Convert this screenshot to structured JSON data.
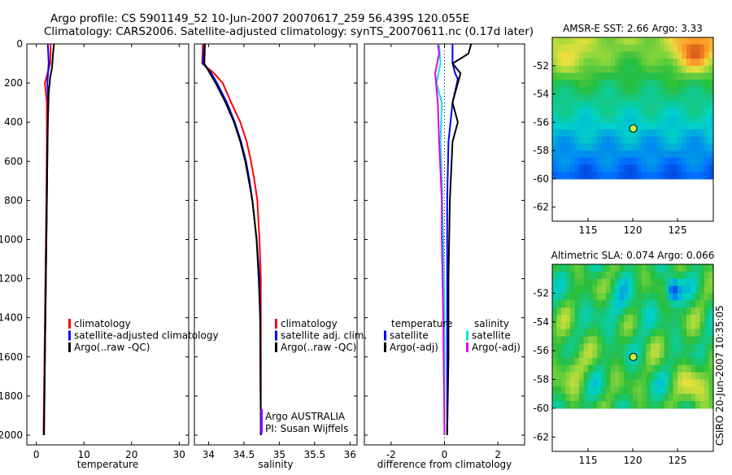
{
  "figure": {
    "title_line1": "Argo profile: CS 5901149_52 10-Jun-2007 20070617_259 56.439S 120.055E",
    "title_line2": "Climatology: CARS2006. Satellite-adjusted climatology: synTS_20070611.nc (0.17d later)",
    "footer": "CSIRO 20-Jun-2007 10:35:05",
    "colors": {
      "red": "#ff0000",
      "blue": "#0000ff",
      "black": "#000000",
      "cyan": "#00e5ee",
      "magenta": "#e000e0"
    }
  },
  "chart_data": [
    {
      "type": "line",
      "name": "temperature",
      "xlabel": "temperature",
      "ylabel": "",
      "xlim": [
        -2,
        32
      ],
      "ylim": [
        2050,
        0
      ],
      "xticks": [
        0,
        10,
        20,
        30
      ],
      "yticks": [
        0,
        200,
        400,
        600,
        800,
        1000,
        1200,
        1400,
        1600,
        1800,
        2000
      ],
      "legend": [
        "climatology",
        "satellite-adjusted climatology",
        "Argo(..raw -QC)"
      ],
      "series": [
        {
          "name": "climatology",
          "color": "red",
          "points": [
            [
              3.0,
              0
            ],
            [
              2.9,
              100
            ],
            [
              1.8,
              200
            ],
            [
              2.2,
              300
            ],
            [
              2.2,
              500
            ],
            [
              2.1,
              800
            ],
            [
              1.9,
              1200
            ],
            [
              1.7,
              1600
            ],
            [
              1.5,
              2000
            ]
          ]
        },
        {
          "name": "satellite-adjusted climatology",
          "color": "blue",
          "points": [
            [
              2.4,
              0
            ],
            [
              2.6,
              100
            ],
            [
              2.3,
              200
            ],
            [
              2.5,
              300
            ],
            [
              2.3,
              500
            ],
            [
              2.2,
              800
            ],
            [
              2.0,
              1200
            ],
            [
              1.8,
              1600
            ],
            [
              1.6,
              2000
            ]
          ]
        },
        {
          "name": "Argo(..raw -QC)",
          "color": "black",
          "points": [
            [
              3.7,
              0
            ],
            [
              3.5,
              50
            ],
            [
              3.3,
              120
            ],
            [
              2.9,
              170
            ],
            [
              2.6,
              250
            ],
            [
              2.4,
              400
            ],
            [
              2.2,
              800
            ],
            [
              2.0,
              1200
            ],
            [
              1.8,
              1600
            ],
            [
              1.6,
              2000
            ]
          ]
        }
      ]
    },
    {
      "type": "line",
      "name": "salinity",
      "xlabel": "salinity",
      "ylabel": "",
      "xlim": [
        33.8,
        36.1
      ],
      "ylim": [
        2050,
        0
      ],
      "xticks": [
        34,
        34.5,
        35,
        35.5,
        36
      ],
      "legend": [
        "climatology",
        "satellite adj. clim.",
        "Argo(..raw -QC)"
      ],
      "annotation": [
        "Argo AUSTRALIA",
        "PI: Susan Wijffels"
      ],
      "series": [
        {
          "name": "climatology",
          "color": "red",
          "points": [
            [
              33.92,
              0
            ],
            [
              33.91,
              100
            ],
            [
              34.08,
              150
            ],
            [
              34.2,
              200
            ],
            [
              34.32,
              300
            ],
            [
              34.45,
              400
            ],
            [
              34.54,
              500
            ],
            [
              34.6,
              600
            ],
            [
              34.65,
              700
            ],
            [
              34.69,
              800
            ],
            [
              34.72,
              1000
            ],
            [
              34.74,
              1200
            ],
            [
              34.74,
              2000
            ]
          ]
        },
        {
          "name": "satellite adj. clim.",
          "color": "blue",
          "points": [
            [
              33.94,
              0
            ],
            [
              33.92,
              100
            ],
            [
              34.04,
              150
            ],
            [
              34.12,
              200
            ],
            [
              34.26,
              300
            ],
            [
              34.37,
              400
            ],
            [
              34.46,
              500
            ],
            [
              34.53,
              600
            ],
            [
              34.58,
              700
            ],
            [
              34.62,
              800
            ],
            [
              34.68,
              1000
            ],
            [
              34.72,
              1200
            ],
            [
              34.73,
              1400
            ],
            [
              34.74,
              2000
            ]
          ]
        },
        {
          "name": "Argo(..raw -QC)",
          "color": "black",
          "points": [
            [
              33.95,
              0
            ],
            [
              33.94,
              100
            ],
            [
              34.02,
              150
            ],
            [
              34.1,
              200
            ],
            [
              34.24,
              300
            ],
            [
              34.36,
              400
            ],
            [
              34.45,
              500
            ],
            [
              34.52,
              600
            ],
            [
              34.57,
              700
            ],
            [
              34.62,
              800
            ],
            [
              34.68,
              1000
            ],
            [
              34.71,
              1200
            ],
            [
              34.73,
              1400
            ],
            [
              34.74,
              2000
            ]
          ]
        }
      ]
    },
    {
      "type": "line",
      "name": "difference",
      "xlabel": "difference from climatology",
      "ylabel": "",
      "xlim": [
        -3,
        3
      ],
      "ylim": [
        2050,
        0
      ],
      "xticks": [
        -2,
        0,
        2
      ],
      "legend_titles": [
        "temperature",
        "salinity"
      ],
      "legend": [
        "satellite",
        "Argo(-adj)",
        "satellite",
        "Argo(-adj)"
      ],
      "series": [
        {
          "name": "temperature satellite",
          "color": "blue",
          "points": [
            [
              0.3,
              0
            ],
            [
              0.3,
              100
            ],
            [
              0.4,
              150
            ],
            [
              0.5,
              180
            ],
            [
              0.3,
              300
            ],
            [
              0.15,
              500
            ],
            [
              0.1,
              800
            ],
            [
              0.1,
              1000
            ],
            [
              0.1,
              1500
            ],
            [
              0.1,
              2000
            ]
          ]
        },
        {
          "name": "temperature Argo(-adj)",
          "color": "black",
          "points": [
            [
              1.0,
              0
            ],
            [
              0.9,
              50
            ],
            [
              0.3,
              100
            ],
            [
              0.6,
              150
            ],
            [
              0.5,
              200
            ],
            [
              0.3,
              300
            ],
            [
              0.5,
              400
            ],
            [
              0.3,
              500
            ],
            [
              0.2,
              800
            ],
            [
              0.15,
              1200
            ],
            [
              0.15,
              1600
            ],
            [
              0.1,
              2000
            ]
          ]
        },
        {
          "name": "salinity satellite",
          "color": "cyan",
          "points": [
            [
              -0.2,
              0
            ],
            [
              -0.15,
              100
            ],
            [
              -0.3,
              200
            ],
            [
              -0.1,
              300
            ],
            [
              -0.15,
              500
            ],
            [
              -0.1,
              700
            ],
            [
              -0.05,
              1000
            ],
            [
              0.0,
              1400
            ],
            [
              0.0,
              2000
            ]
          ]
        },
        {
          "name": "salinity Argo(-adj)",
          "color": "magenta",
          "points": [
            [
              -0.25,
              0
            ],
            [
              -0.2,
              50
            ],
            [
              -0.35,
              150
            ],
            [
              -0.25,
              300
            ],
            [
              -0.2,
              500
            ],
            [
              -0.1,
              800
            ],
            [
              -0.1,
              1000
            ],
            [
              -0.05,
              1400
            ],
            [
              0.0,
              2000
            ]
          ]
        }
      ]
    },
    {
      "type": "heatmap",
      "name": "sst-map",
      "title": "AMSR-E SST: 2.66 Argo: 3.33",
      "xlim": [
        111,
        129
      ],
      "ylim": [
        -63,
        -50
      ],
      "xticks": [
        115,
        120,
        125
      ],
      "yticks": [
        -52,
        -54,
        -56,
        -58,
        -60,
        -62
      ],
      "marker": [
        120.055,
        -56.439
      ],
      "data_south_limit": -60
    },
    {
      "type": "heatmap",
      "name": "sla-map",
      "title": "Altimetric SLA: 0.074 Argo: 0.066",
      "xlim": [
        111,
        129
      ],
      "ylim": [
        -63,
        -50
      ],
      "xticks": [
        115,
        120,
        125
      ],
      "yticks": [
        -52,
        -54,
        -56,
        -58,
        -60,
        -62
      ],
      "marker": [
        120.055,
        -56.439
      ],
      "data_south_limit": -60
    }
  ]
}
